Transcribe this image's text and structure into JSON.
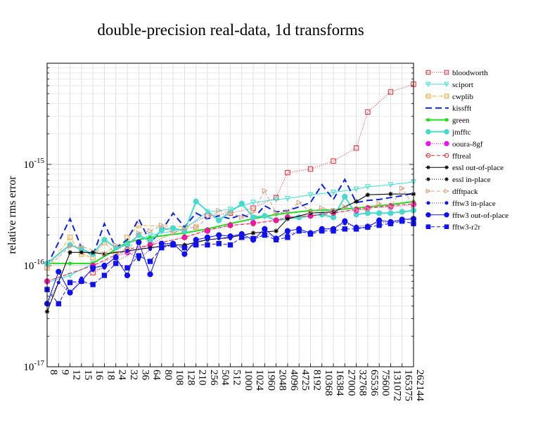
{
  "chart_data": {
    "type": "line",
    "title": "double-precision real-data, 1d transforms",
    "ylabel": "relative rms error",
    "xlabel": "",
    "yscale": "log",
    "ylim": [
      1e-17,
      1e-14
    ],
    "yticks": [
      {
        "value": 1e-17,
        "base": "10",
        "exp": "-17"
      },
      {
        "value": 1e-16,
        "base": "10",
        "exp": "-16"
      },
      {
        "value": 1e-15,
        "base": "10",
        "exp": "-15"
      }
    ],
    "grid": true,
    "legend_position": "right",
    "categories": [
      "8",
      "9",
      "12",
      "15",
      "16",
      "18",
      "24",
      "32",
      "36",
      "64",
      "80",
      "108",
      "128",
      "210",
      "256",
      "504",
      "512",
      "1000",
      "1024",
      "1960",
      "2048",
      "4096",
      "4725",
      "8192",
      "10368",
      "16384",
      "27000",
      "32768",
      "65536",
      "75600",
      "131072",
      "165375",
      "262144"
    ],
    "series": [
      {
        "name": "bloodworth",
        "color": "#e8232e",
        "dash": "1,2",
        "marker": "square-open",
        "values": [
          null,
          null,
          null,
          null,
          8.5e-17,
          null,
          null,
          null,
          null,
          null,
          null,
          null,
          null,
          null,
          3.1e-16,
          null,
          3.3e-16,
          null,
          3.7e-16,
          null,
          4.7e-16,
          8.3e-16,
          null,
          9e-16,
          null,
          1.08e-15,
          null,
          1.45e-15,
          3.3e-15,
          null,
          5.2e-15,
          null,
          6.2e-15
        ]
      },
      {
        "name": "sciport",
        "color": "#40e0d0",
        "dash": "",
        "marker": "triangle-down-open",
        "values": [
          6.8e-17,
          null,
          8e-17,
          null,
          1.05e-16,
          null,
          null,
          1.65e-16,
          null,
          2e-16,
          null,
          null,
          2.3e-16,
          null,
          3.4e-16,
          null,
          3.6e-16,
          null,
          4.2e-16,
          null,
          4.5e-16,
          4.6e-16,
          null,
          5e-16,
          null,
          5.3e-16,
          null,
          5.7e-16,
          6e-16,
          null,
          6.3e-16,
          null,
          6.7e-16
        ]
      },
      {
        "name": "cwplib",
        "color": "#f0a22e",
        "dash": "5,2,1,2",
        "marker": "square-open",
        "values": [
          9.5e-17,
          null,
          1.9e-16,
          1.3e-16,
          1.2e-16,
          1.7e-16,
          1.3e-16,
          1.9e-16,
          2.5e-16,
          null,
          null,
          null,
          null,
          2.4e-16,
          null,
          null,
          null,
          null,
          null,
          null,
          null,
          null,
          null,
          null,
          null,
          null,
          null,
          null,
          null,
          null,
          null,
          null,
          null
        ]
      },
      {
        "name": "kissfft",
        "color": "#0a22e6",
        "dash": "9,5",
        "marker": "none",
        "values": [
          1e-16,
          null,
          2.9e-16,
          1.5e-16,
          1.25e-16,
          2.6e-16,
          1.5e-16,
          1.8e-16,
          2.9e-16,
          1.7e-16,
          2.2e-16,
          3.3e-16,
          2.4e-16,
          3.3e-16,
          2.9e-16,
          3.1e-16,
          2.9e-16,
          3.2e-16,
          2.9e-16,
          3.9e-16,
          3.4e-16,
          3.5e-16,
          3.8e-16,
          4.2e-16,
          6.3e-16,
          4.5e-16,
          7.1e-16,
          4.2e-16,
          4.4e-16,
          4.5e-16,
          4.7e-16,
          4.9e-16,
          5.2e-16
        ]
      },
      {
        "name": "green",
        "color": "#22dd22",
        "dash": "",
        "marker": "dot",
        "values": [
          1.05e-16,
          null,
          1.05e-16,
          null,
          1.05e-16,
          null,
          null,
          1.7e-16,
          null,
          1.9e-16,
          null,
          null,
          2.1e-16,
          null,
          2.3e-16,
          null,
          2.6e-16,
          null,
          2.9e-16,
          null,
          3.2e-16,
          3.3e-16,
          null,
          3.5e-16,
          null,
          3.55e-16,
          null,
          3.7e-16,
          3.8e-16,
          null,
          4e-16,
          null,
          4.3e-16
        ]
      },
      {
        "name": "jmfftc",
        "color": "#48d8cc",
        "dash": "",
        "marker": "circle",
        "values": [
          1.05e-16,
          null,
          1.6e-16,
          1.45e-16,
          1.3e-16,
          1.8e-16,
          1.5e-16,
          1.6e-16,
          2e-16,
          1.75e-16,
          2.25e-16,
          2.35e-16,
          2.2e-16,
          4.3e-16,
          null,
          2.8e-16,
          null,
          4.1e-16,
          3e-16,
          3.1e-16,
          2.8e-16,
          null,
          3e-16,
          null,
          3.2e-16,
          3e-16,
          4.8e-16,
          3.2e-16,
          3.3e-16,
          3.3e-16,
          3.3e-16,
          3.4e-16,
          3.5e-16
        ]
      },
      {
        "name": "ooura-8gf",
        "color": "#f014f0",
        "dash": "1,2",
        "marker": "circle",
        "values": [
          7e-17,
          null,
          null,
          null,
          1e-16,
          null,
          null,
          1.35e-16,
          null,
          1.6e-16,
          null,
          null,
          1.9e-16,
          null,
          2.2e-16,
          null,
          2.5e-16,
          null,
          2.65e-16,
          null,
          2.8e-16,
          3e-16,
          null,
          3.1e-16,
          null,
          3.4e-16,
          null,
          3.5e-16,
          3.7e-16,
          null,
          3.8e-16,
          null,
          4e-16
        ]
      },
      {
        "name": "fftreal",
        "color": "#e8232e",
        "dash": "5,3",
        "marker": "circle-open",
        "values": [
          7e-17,
          null,
          null,
          null,
          1e-16,
          null,
          null,
          1.45e-16,
          null,
          1.6e-16,
          null,
          null,
          1.9e-16,
          null,
          2.25e-16,
          null,
          2.5e-16,
          null,
          2.6e-16,
          null,
          2.8e-16,
          3e-16,
          null,
          3.1e-16,
          null,
          3.3e-16,
          null,
          3.6e-16,
          3.7e-16,
          null,
          3.9e-16,
          null,
          4.1e-16
        ]
      },
      {
        "name": "essl out-of-place",
        "color": "#000000",
        "dash": "",
        "marker": "star",
        "values": [
          3.5e-17,
          null,
          1.35e-16,
          1.35e-16,
          1.35e-16,
          1.3e-16,
          null,
          1.4e-16,
          null,
          1.5e-16,
          null,
          1.6e-16,
          1.6e-16,
          null,
          1.8e-16,
          null,
          1.9e-16,
          null,
          2.1e-16,
          null,
          2.2e-16,
          2.9e-16,
          null,
          3.3e-16,
          null,
          3.4e-16,
          null,
          4.3e-16,
          5e-16,
          null,
          5.1e-16,
          null,
          5.1e-16
        ]
      },
      {
        "name": "essl in-place",
        "color": "#000000",
        "dash": "1,2",
        "marker": "star",
        "values": [
          3.5e-17,
          null,
          1.35e-16,
          null,
          1.35e-16,
          1.3e-16,
          null,
          1.4e-16,
          null,
          1.5e-16,
          null,
          1.6e-16,
          1.6e-16,
          null,
          1.8e-16,
          null,
          1.9e-16,
          null,
          2.1e-16,
          null,
          2.2e-16,
          2.9e-16,
          null,
          3.3e-16,
          null,
          3.4e-16,
          null,
          4.3e-16,
          5e-16,
          null,
          5.1e-16,
          null,
          5.1e-16
        ]
      },
      {
        "name": "dfftpack",
        "color": "#d4a087",
        "dash": "5,3",
        "marker": "triangle-right-open",
        "values": [
          9.5e-17,
          null,
          1.55e-16,
          1.55e-16,
          null,
          1.3e-16,
          1.6e-16,
          1.35e-16,
          2.1e-16,
          2.2e-16,
          2.5e-16,
          2.1e-16,
          2.3e-16,
          2.4e-16,
          null,
          3.5e-16,
          3.3e-16,
          3e-16,
          3.4e-16,
          5.5e-16,
          3.3e-16,
          3.4e-16,
          4.2e-16,
          3.4e-16,
          3.7e-16,
          3.5e-16,
          3.8e-16,
          3.5e-16,
          3.6e-16,
          4.1e-16,
          3.8e-16,
          5.8e-16,
          3.9e-16
        ]
      },
      {
        "name": "fftw3 in-place",
        "color": "#1010f0",
        "dash": "1,2",
        "marker": "dot",
        "values": [
          4.2e-17,
          6.8e-17,
          5.4e-17,
          7.5e-17,
          9e-17,
          9.5e-17,
          1.25e-16,
          1.4e-16,
          1.15e-16,
          1.45e-16,
          1.6e-16,
          1.65e-16,
          1.3e-16,
          1.75e-16,
          1.8e-16,
          1.85e-16,
          1.85e-16,
          2.1e-16,
          1.75e-16,
          2.1e-16,
          1.9e-16,
          2.05e-16,
          2.15e-16,
          2.1e-16,
          2.3e-16,
          2.35e-16,
          2.6e-16,
          2.45e-16,
          2.5e-16,
          2.7e-16,
          2.6e-16,
          2.9e-16,
          2.8e-16
        ]
      },
      {
        "name": "fftw3 out-of-place",
        "color": "#1010f0",
        "dash": "",
        "marker": "circle",
        "values": [
          4.2e-17,
          8.7e-17,
          5.4e-17,
          7e-17,
          9.5e-17,
          1e-16,
          1.2e-16,
          8e-17,
          1.7e-16,
          8.2e-17,
          1.65e-16,
          1.65e-16,
          1.3e-16,
          1.8e-16,
          1.9e-16,
          2e-16,
          1.95e-16,
          2.05e-16,
          1.8e-16,
          2.3e-16,
          1.85e-16,
          2.2e-16,
          2.3e-16,
          2.1e-16,
          2.3e-16,
          2.3e-16,
          2.75e-16,
          2.35e-16,
          2.4e-16,
          2.8e-16,
          2.7e-16,
          2.85e-16,
          2.9e-16
        ]
      },
      {
        "name": "fftw3-r2r",
        "color": "#1010f0",
        "dash": "5,3",
        "marker": "square",
        "values": [
          5.8e-17,
          4.2e-17,
          6.8e-17,
          7e-17,
          6.5e-17,
          8e-17,
          1.05e-16,
          9.5e-17,
          1.25e-16,
          1.1e-16,
          1.5e-16,
          1.6e-16,
          1.5e-16,
          1.6e-16,
          1.6e-16,
          1.65e-16,
          1.6e-16,
          1.9e-16,
          1.85e-16,
          2e-16,
          1.8e-16,
          1.9e-16,
          2.2e-16,
          2.05e-16,
          2.2e-16,
          2.2e-16,
          2.3e-16,
          2.3e-16,
          2.4e-16,
          2.5e-16,
          2.6e-16,
          2.75e-16,
          2.6e-16
        ]
      }
    ]
  }
}
